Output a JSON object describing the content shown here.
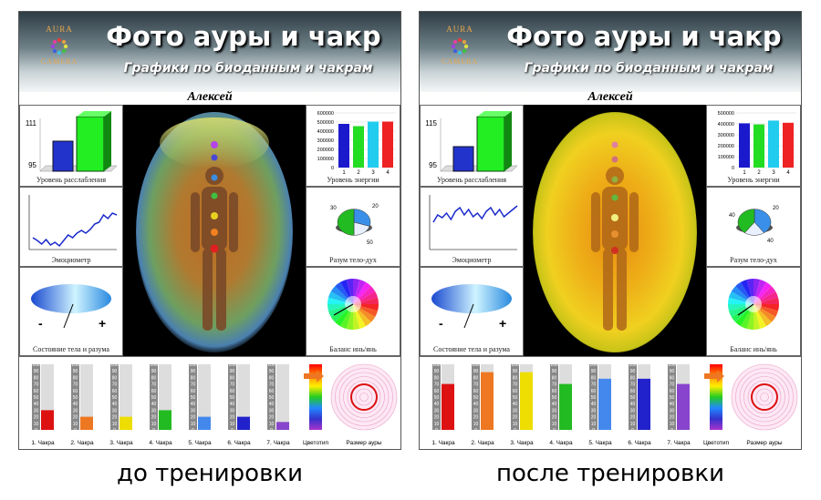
{
  "panels": [
    {
      "logo_top": "AURA",
      "logo_bottom": "CAMERA",
      "title": "Фото  ауры и чакр",
      "subtitle": "Графики по биоданным и чакрам",
      "person": "Алексей",
      "relax": {
        "label": "Уровень расслабления",
        "tick_high": "111",
        "tick_low": "95",
        "blue": 0.55,
        "green": 0.95
      },
      "energy": {
        "label": "Уровень энергии",
        "ticks": [
          "600000",
          "500000",
          "400000",
          "300000",
          "200000",
          "100000",
          "0"
        ],
        "cats": [
          "1",
          "2",
          "3",
          "4"
        ],
        "values": [
          480000,
          455000,
          505000,
          505000
        ],
        "max": 600000
      },
      "emotion": {
        "label": "Эмоциометр",
        "points": [
          55,
          58,
          62,
          57,
          63,
          60,
          64,
          58,
          52,
          55,
          50,
          47,
          50,
          46,
          40,
          38,
          30,
          34,
          28,
          30
        ]
      },
      "mind": {
        "label": "Разум тело-дух",
        "pct": [
          "30",
          "20",
          "50"
        ],
        "slices": [
          30,
          20,
          50
        ]
      },
      "state": {
        "label": "Состояние тела и разума",
        "minus": "-",
        "plus": "+"
      },
      "balance": {
        "label": "Баланс инь/янь"
      },
      "chakras": {
        "scale": [
          "100",
          "90",
          "80",
          "70",
          "60",
          "50",
          "40",
          "30",
          "20",
          "10",
          "0"
        ],
        "items": [
          {
            "label": "1. Чакра",
            "value": 30,
            "color": "#dd1111"
          },
          {
            "label": "2. Чакра",
            "value": 20,
            "color": "#ee7722"
          },
          {
            "label": "3. Чакра",
            "value": 20,
            "color": "#eedd00"
          },
          {
            "label": "4. Чакра",
            "value": 30,
            "color": "#22bb22"
          },
          {
            "label": "5. Чакра",
            "value": 20,
            "color": "#4488ee"
          },
          {
            "label": "6. Чакра",
            "value": 20,
            "color": "#2222cc"
          },
          {
            "label": "7. Чакра",
            "value": 12,
            "color": "#8844cc"
          }
        ],
        "colortype_label": "Цветотип",
        "size_label": "Размер ауры"
      },
      "aura": {
        "inner": "#c06a20",
        "mid": "#6e9f60",
        "outer": "#4a80b0"
      }
    },
    {
      "logo_top": "AURA",
      "logo_bottom": "CAMERA",
      "title": "Фото  ауры и чакр",
      "subtitle": "Графики по биоданным и чакрам",
      "person": "Алексей",
      "relax": {
        "label": "Уровень расслабления",
        "tick_high": "115",
        "tick_low": "95",
        "blue": 0.45,
        "green": 0.95
      },
      "energy": {
        "label": "Уровень энергии",
        "ticks": [
          "500000",
          "400000",
          "300000",
          "200000",
          "100000",
          "0"
        ],
        "cats": [
          "1",
          "2",
          "3",
          "4"
        ],
        "values": [
          405000,
          395000,
          430000,
          410000
        ],
        "max": 500000
      },
      "emotion": {
        "label": "Эмоциометр",
        "points": [
          38,
          30,
          33,
          28,
          35,
          26,
          22,
          30,
          24,
          32,
          28,
          34,
          26,
          22,
          30,
          24,
          32,
          28,
          24,
          20
        ]
      },
      "mind": {
        "label": "Разум тело-дух",
        "pct": [
          "40",
          "20",
          "40"
        ],
        "slices": [
          40,
          20,
          40
        ]
      },
      "state": {
        "label": "Состояние тела и разума",
        "minus": "-",
        "plus": "+"
      },
      "balance": {
        "label": "Баланс инь/янь"
      },
      "chakras": {
        "scale": [
          "100",
          "90",
          "80",
          "70",
          "60",
          "50",
          "40",
          "30",
          "20",
          "10",
          "0"
        ],
        "items": [
          {
            "label": "1. Чакра",
            "value": 70,
            "color": "#dd1111"
          },
          {
            "label": "2. Чакра",
            "value": 88,
            "color": "#ee7722"
          },
          {
            "label": "3. Чакра",
            "value": 88,
            "color": "#eedd00"
          },
          {
            "label": "4. Чакра",
            "value": 70,
            "color": "#22bb22"
          },
          {
            "label": "5. Чакра",
            "value": 78,
            "color": "#4488ee"
          },
          {
            "label": "6. Чакра",
            "value": 78,
            "color": "#2222cc"
          },
          {
            "label": "7. Чакра",
            "value": 70,
            "color": "#8844cc"
          }
        ],
        "colortype_label": "Цветотип",
        "size_label": "Размер ауры"
      },
      "aura": {
        "inner": "#e8a010",
        "mid": "#f0d020",
        "outer": "#d8c820"
      }
    }
  ],
  "captions": [
    "до тренировки",
    "после тренировки"
  ]
}
